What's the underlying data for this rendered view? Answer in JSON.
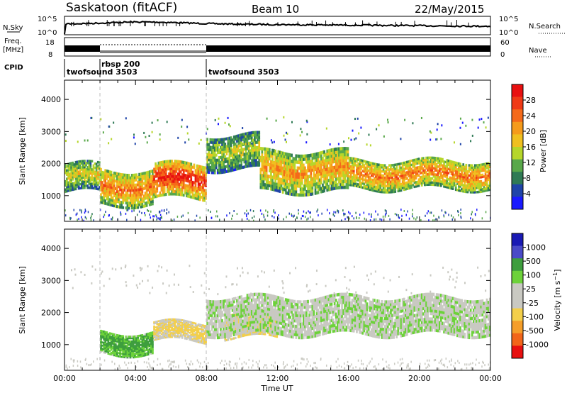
{
  "header": {
    "station": "Saskatoon (fitACF)",
    "beam": "Beam 10",
    "date": "22/May/2015"
  },
  "strip_labels": {
    "nsky": "N.Sky",
    "nsearch": "N.Search",
    "freq_line1": "Freq.",
    "freq_line2": "[MHz]",
    "nave": "Nave",
    "cpid": "CPID",
    "noise_hi": "10^5",
    "noise_lo": "10^0",
    "freq_hi": "18",
    "freq_lo": "8",
    "nave_hi": "60",
    "nave_lo": "0"
  },
  "cpid_segments": [
    {
      "label": "twofsound 3503",
      "start": "00:00",
      "end": "02:00"
    },
    {
      "label": "rbsp 200",
      "start": "02:00",
      "end": "08:00"
    },
    {
      "label": "twofsound 3503",
      "start": "08:00",
      "end": "24:00"
    }
  ],
  "colors": {
    "power": [
      "#1a1aff",
      "#1f44a8",
      "#2f7a55",
      "#59a84a",
      "#b6d62a",
      "#f0c020",
      "#f59b1c",
      "#f46a1a",
      "#ef3a16",
      "#e81010"
    ],
    "velocity": [
      "#e81010",
      "#f2651a",
      "#f59e2a",
      "#f3cf4a",
      "#c9c9c2",
      "#c9c9c2",
      "#6dd23a",
      "#3e9e3e",
      "#4a4ac8",
      "#1a1ab4"
    ],
    "panel_frame": "#000000"
  },
  "chart_data": [
    {
      "type": "heatmap",
      "title": "Power",
      "ylabel": "Slant Range [km]",
      "xlabel": "Time UT",
      "x_ticks": [
        "00:00",
        "04:00",
        "08:00",
        "12:00",
        "16:00",
        "20:00",
        "00:00"
      ],
      "y_ticks": [
        1000,
        2000,
        3000,
        4000
      ],
      "ylim": [
        200,
        4600
      ],
      "colorbar_label": "Power [dB]",
      "colorbar_ticks": [
        4,
        8,
        12,
        16,
        20,
        24,
        28
      ],
      "colorbar_range": [
        0,
        30
      ],
      "echo_bands": [
        {
          "t": [
            0,
            2
          ],
          "range_km": [
            1100,
            2000
          ],
          "power_db": 16
        },
        {
          "t": [
            2,
            5
          ],
          "range_km": [
            700,
            1800
          ],
          "power_db": 22
        },
        {
          "t": [
            5,
            8
          ],
          "range_km": [
            900,
            2000
          ],
          "power_db": 28
        },
        {
          "t": [
            8,
            11
          ],
          "range_km": [
            1800,
            2900
          ],
          "power_db": 14
        },
        {
          "t": [
            11,
            16
          ],
          "range_km": [
            1100,
            2400
          ],
          "power_db": 20
        },
        {
          "t": [
            16,
            24
          ],
          "range_km": [
            1200,
            2100
          ],
          "power_db": 22
        }
      ]
    },
    {
      "type": "heatmap",
      "title": "Velocity",
      "ylabel": "Slant Range [km]",
      "xlabel": "Time UT",
      "x_ticks": [
        "00:00",
        "04:00",
        "08:00",
        "12:00",
        "16:00",
        "20:00",
        "00:00"
      ],
      "y_ticks": [
        1000,
        2000,
        3000,
        4000
      ],
      "ylim": [
        200,
        4600
      ],
      "colorbar_label": "Velocity [m s^-1]",
      "colorbar_ticks": [
        "1000",
        "500",
        "100",
        "25",
        "-25",
        "-100",
        "-500",
        "-1000"
      ],
      "echo_bands": [
        {
          "t": [
            2,
            5
          ],
          "range_km": [
            700,
            1400
          ],
          "velocity_ms": 150
        },
        {
          "t": [
            5,
            8
          ],
          "range_km": [
            1100,
            1700
          ],
          "velocity_ms": -150
        },
        {
          "t": [
            9,
            12
          ],
          "range_km": [
            1200,
            2000
          ],
          "velocity_ms": -200
        },
        {
          "t": [
            8,
            24
          ],
          "range_km": [
            1300,
            2500
          ],
          "velocity_ms": 0
        }
      ]
    }
  ]
}
